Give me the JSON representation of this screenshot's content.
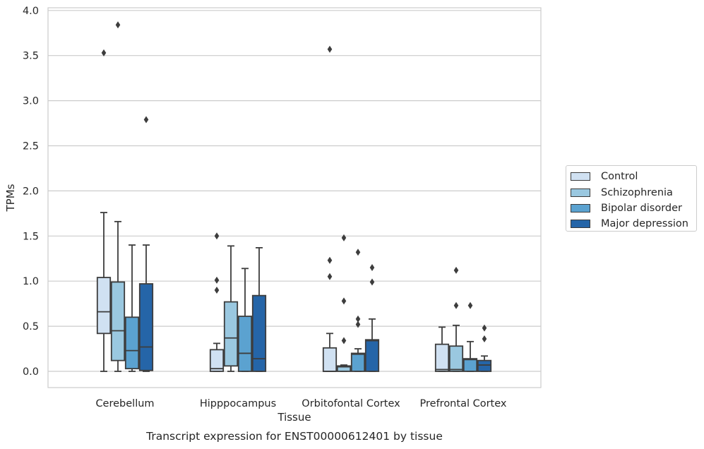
{
  "chart_data": {
    "type": "box",
    "title": "Transcript expression for ENST00000612401 by tissue",
    "xlabel": "Tissue",
    "ylabel": "TPMs",
    "categories": [
      "Cerebellum",
      "Hipppocampus",
      "Orbitofontal Cortex",
      "Prefrontal Cortex"
    ],
    "ylim": [
      -0.18,
      4.05
    ],
    "yticks": [
      "0.0",
      "0.5",
      "1.0",
      "1.5",
      "2.0",
      "2.5",
      "3.0",
      "3.5",
      "4.0"
    ],
    "grid": true,
    "legend_placement": "outside-right",
    "series": [
      {
        "name": "Control",
        "color": "#d0e1f2",
        "boxes": [
          {
            "whisker_low": 0.0,
            "q1": 0.42,
            "median": 0.66,
            "q3": 1.04,
            "whisker_high": 1.76,
            "outliers": [
              3.53
            ]
          },
          {
            "whisker_low": 0.0,
            "q1": 0.0,
            "median": 0.03,
            "q3": 0.24,
            "whisker_high": 0.31,
            "outliers": [
              1.5,
              1.01,
              0.9
            ]
          },
          {
            "whisker_low": 0.0,
            "q1": 0.0,
            "median": 0.0,
            "q3": 0.26,
            "whisker_high": 0.42,
            "outliers": [
              3.57,
              1.23,
              1.05
            ]
          },
          {
            "whisker_low": 0.0,
            "q1": 0.0,
            "median": 0.02,
            "q3": 0.3,
            "whisker_high": 0.49,
            "outliers": []
          }
        ]
      },
      {
        "name": "Schizophrenia",
        "color": "#9ac8e0",
        "boxes": [
          {
            "whisker_low": 0.0,
            "q1": 0.12,
            "median": 0.45,
            "q3": 0.99,
            "whisker_high": 1.66,
            "outliers": [
              3.84
            ]
          },
          {
            "whisker_low": 0.0,
            "q1": 0.06,
            "median": 0.37,
            "q3": 0.77,
            "whisker_high": 1.39,
            "outliers": []
          },
          {
            "whisker_low": 0.0,
            "q1": 0.0,
            "median": 0.05,
            "q3": 0.06,
            "whisker_high": 0.07,
            "outliers": [
              1.48,
              0.78,
              0.34
            ]
          },
          {
            "whisker_low": 0.0,
            "q1": 0.0,
            "median": 0.02,
            "q3": 0.28,
            "whisker_high": 0.51,
            "outliers": [
              1.12,
              0.73
            ]
          }
        ]
      },
      {
        "name": "Bipolar disorder",
        "color": "#5ba2d0",
        "boxes": [
          {
            "whisker_low": 0.0,
            "q1": 0.03,
            "median": 0.23,
            "q3": 0.6,
            "whisker_high": 1.4,
            "outliers": []
          },
          {
            "whisker_low": 0.0,
            "q1": 0.0,
            "median": 0.2,
            "q3": 0.61,
            "whisker_high": 1.14,
            "outliers": []
          },
          {
            "whisker_low": 0.0,
            "q1": 0.0,
            "median": 0.19,
            "q3": 0.2,
            "whisker_high": 0.25,
            "outliers": [
              1.32,
              0.58,
              0.52
            ]
          },
          {
            "whisker_low": 0.0,
            "q1": 0.0,
            "median": 0.13,
            "q3": 0.14,
            "whisker_high": 0.33,
            "outliers": [
              0.73
            ]
          }
        ]
      },
      {
        "name": "Major depression",
        "color": "#2565a8",
        "boxes": [
          {
            "whisker_low": 0.0,
            "q1": 0.01,
            "median": 0.27,
            "q3": 0.97,
            "whisker_high": 1.4,
            "outliers": [
              2.79
            ]
          },
          {
            "whisker_low": 0.0,
            "q1": 0.0,
            "median": 0.14,
            "q3": 0.84,
            "whisker_high": 1.37,
            "outliers": []
          },
          {
            "whisker_low": 0.0,
            "q1": 0.0,
            "median": 0.34,
            "q3": 0.35,
            "whisker_high": 0.58,
            "outliers": [
              1.15,
              0.99
            ]
          },
          {
            "whisker_low": 0.0,
            "q1": 0.0,
            "median": 0.07,
            "q3": 0.12,
            "whisker_high": 0.17,
            "outliers": [
              0.48,
              0.36
            ]
          }
        ]
      }
    ]
  }
}
